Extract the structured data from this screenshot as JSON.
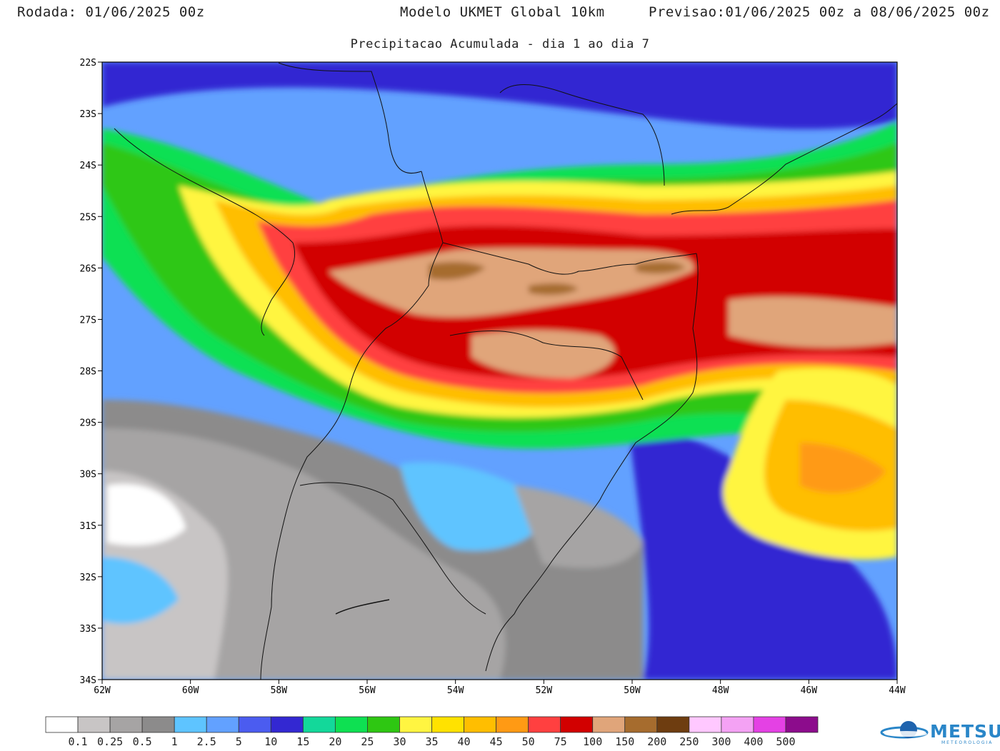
{
  "header": {
    "run_label": "Rodada:",
    "run_value": "01/06/2025 00z",
    "model": "Modelo UKMET Global 10km",
    "forecast_label": "Previsao:",
    "forecast_value": "01/06/2025 00z a 08/06/2025 00z",
    "subtitle": "Precipitacao Acumulada - dia 1 ao dia 7"
  },
  "map": {
    "lat_ticks": [
      "22S",
      "23S",
      "24S",
      "25S",
      "26S",
      "27S",
      "28S",
      "29S",
      "30S",
      "31S",
      "32S",
      "33S",
      "34S"
    ],
    "lon_ticks": [
      "62W",
      "60W",
      "58W",
      "56W",
      "54W",
      "52W",
      "50W",
      "48W",
      "46W",
      "44W"
    ]
  },
  "legend": {
    "colors": [
      "#ffffff",
      "#c8c5c5",
      "#a6a4a4",
      "#8c8b8b",
      "#5ec4ff",
      "#62a1ff",
      "#4b5cf0",
      "#3328d2",
      "#13d89a",
      "#0ee052",
      "#2ec712",
      "#fff541",
      "#ffe200",
      "#ffbe00",
      "#ff9a14",
      "#ff4040",
      "#d20000",
      "#e0a57a",
      "#a66c2e",
      "#6e3d10",
      "#ffc8ff",
      "#f4a2f4",
      "#e441e4",
      "#8c0c8c"
    ],
    "labels": [
      "0.1",
      "0.25",
      "0.5",
      "1",
      "2.5",
      "5",
      "10",
      "15",
      "20",
      "25",
      "30",
      "35",
      "40",
      "45",
      "50",
      "75",
      "100",
      "150",
      "200",
      "250",
      "300",
      "400",
      "500"
    ]
  },
  "logo": {
    "name": "METSUL",
    "sub": "METEOROLOGIA"
  }
}
